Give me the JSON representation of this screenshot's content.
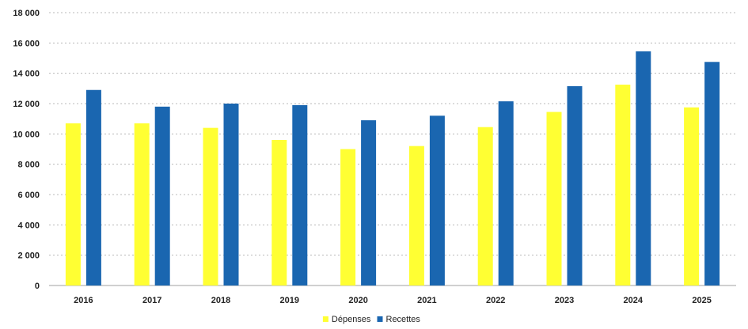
{
  "chart_data": {
    "type": "bar",
    "title": "",
    "xlabel": "",
    "ylabel": "",
    "categories": [
      "2016",
      "2017",
      "2018",
      "2019",
      "2020",
      "2021",
      "2022",
      "2023",
      "2024",
      "2025"
    ],
    "series": [
      {
        "name": "Dépenses",
        "color": "#ffff33",
        "values": [
          10700,
          10700,
          10400,
          9600,
          9000,
          9200,
          10450,
          11450,
          13250,
          11750
        ]
      },
      {
        "name": "Recettes",
        "color": "#1a66b0",
        "values": [
          12900,
          11800,
          12000,
          11900,
          10900,
          11200,
          12150,
          13150,
          15450,
          14750
        ]
      }
    ],
    "ylim": [
      0,
      18000
    ],
    "yticks": [
      0,
      2000,
      4000,
      6000,
      8000,
      10000,
      12000,
      14000,
      16000,
      18000
    ],
    "ytick_labels": [
      "0",
      "2 000",
      "4 000",
      "6 000",
      "8 000",
      "10 000",
      "12 000",
      "14 000",
      "16 000",
      "18 000"
    ],
    "grid": true,
    "legend_position": "bottom-center"
  }
}
